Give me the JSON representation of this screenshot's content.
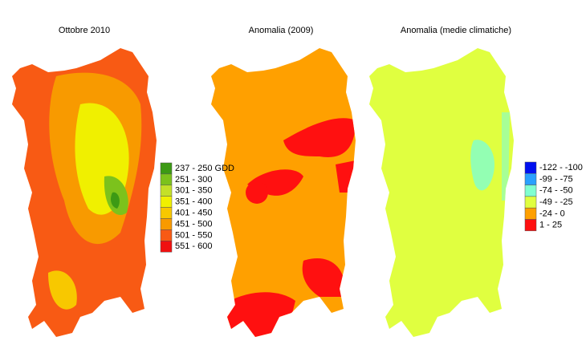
{
  "maps": [
    {
      "title": "Ottobre 2010"
    },
    {
      "title": "Anomalia (2009)"
    },
    {
      "title": "Anomalia (medie climatiche)"
    }
  ],
  "legends": [
    {
      "items": [
        {
          "label": "237 - 250 GDD",
          "color": "#3c9a14"
        },
        {
          "label": "251 - 300",
          "color": "#7cc21c"
        },
        {
          "label": "301 - 350",
          "color": "#c4e028"
        },
        {
          "label": "351 - 400",
          "color": "#f0f000"
        },
        {
          "label": "401 - 450",
          "color": "#f8c800"
        },
        {
          "label": "451 - 500",
          "color": "#f89a00"
        },
        {
          "label": "501 - 550",
          "color": "#f85a14"
        },
        {
          "label": "551 - 600",
          "color": "#f01010"
        }
      ]
    },
    {
      "items": [
        {
          "label": "-122 - -100",
          "color": "#0010f0"
        },
        {
          "label": "-99 - -75",
          "color": "#2aa0ff"
        },
        {
          "label": "-74 - -50",
          "color": "#80ffd0"
        },
        {
          "label": "-49 - -25",
          "color": "#e0ff40"
        },
        {
          "label": "-24 - 0",
          "color": "#ffa000"
        },
        {
          "label": "1 - 25",
          "color": "#ff1010"
        }
      ]
    }
  ]
}
